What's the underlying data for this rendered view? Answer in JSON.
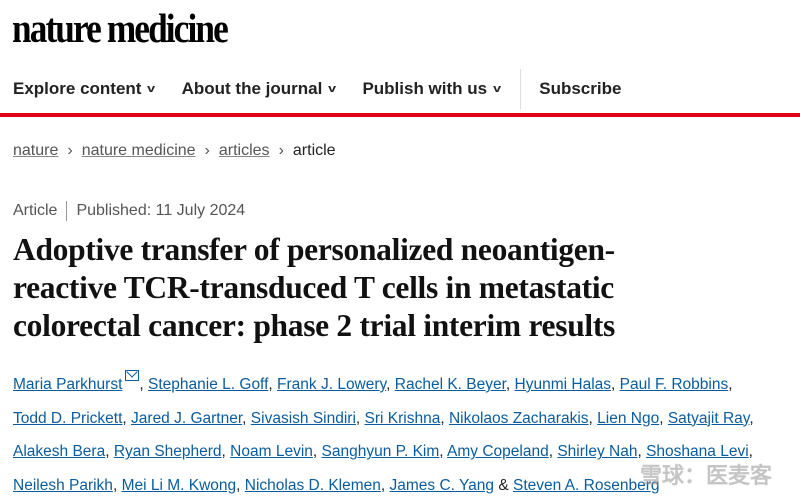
{
  "header": {
    "logo": "nature medicine"
  },
  "nav": {
    "items": [
      {
        "label": "Explore content",
        "dropdown": true
      },
      {
        "label": "About the journal",
        "dropdown": true
      },
      {
        "label": "Publish with us",
        "dropdown": true
      },
      {
        "label": "Subscribe",
        "dropdown": false
      }
    ],
    "accent": "#e0001b"
  },
  "breadcrumb": {
    "items": [
      "nature",
      "nature medicine",
      "articles"
    ],
    "current": "article"
  },
  "article": {
    "type": "Article",
    "published": "Published: 11 July 2024",
    "title_lines": [
      "Adoptive transfer of personalized neoantigen-",
      "reactive TCR-transduced T cells in metastatic",
      "colorectal cancer: phase 2 trial interim results"
    ],
    "author_lines": [
      [
        "Maria Parkhurst",
        "Stephanie L. Goff",
        "Frank J. Lowery",
        "Rachel K. Beyer",
        "Hyunmi Halas",
        "Paul F. Robbins"
      ],
      [
        "Todd D. Prickett",
        "Jared J. Gartner",
        "Sivasish Sindiri",
        "Sri Krishna",
        "Nikolaos Zacharakis",
        "Lien Ngo",
        "Satyajit Ray"
      ],
      [
        "Alakesh Bera",
        "Ryan Shepherd",
        "Noam Levin",
        "Sanghyun P. Kim",
        "Amy Copeland",
        "Shirley Nah",
        "Shoshana Levi"
      ],
      [
        "Neilesh Parikh",
        "Mei Li M. Kwong",
        "Nicholas D. Klemen",
        "James C. Yang",
        "Steven A. Rosenberg"
      ]
    ],
    "corresponding_icon": "mail-icon",
    "link_color": "#0a5c9e"
  },
  "watermark": "雪球：医麦客"
}
